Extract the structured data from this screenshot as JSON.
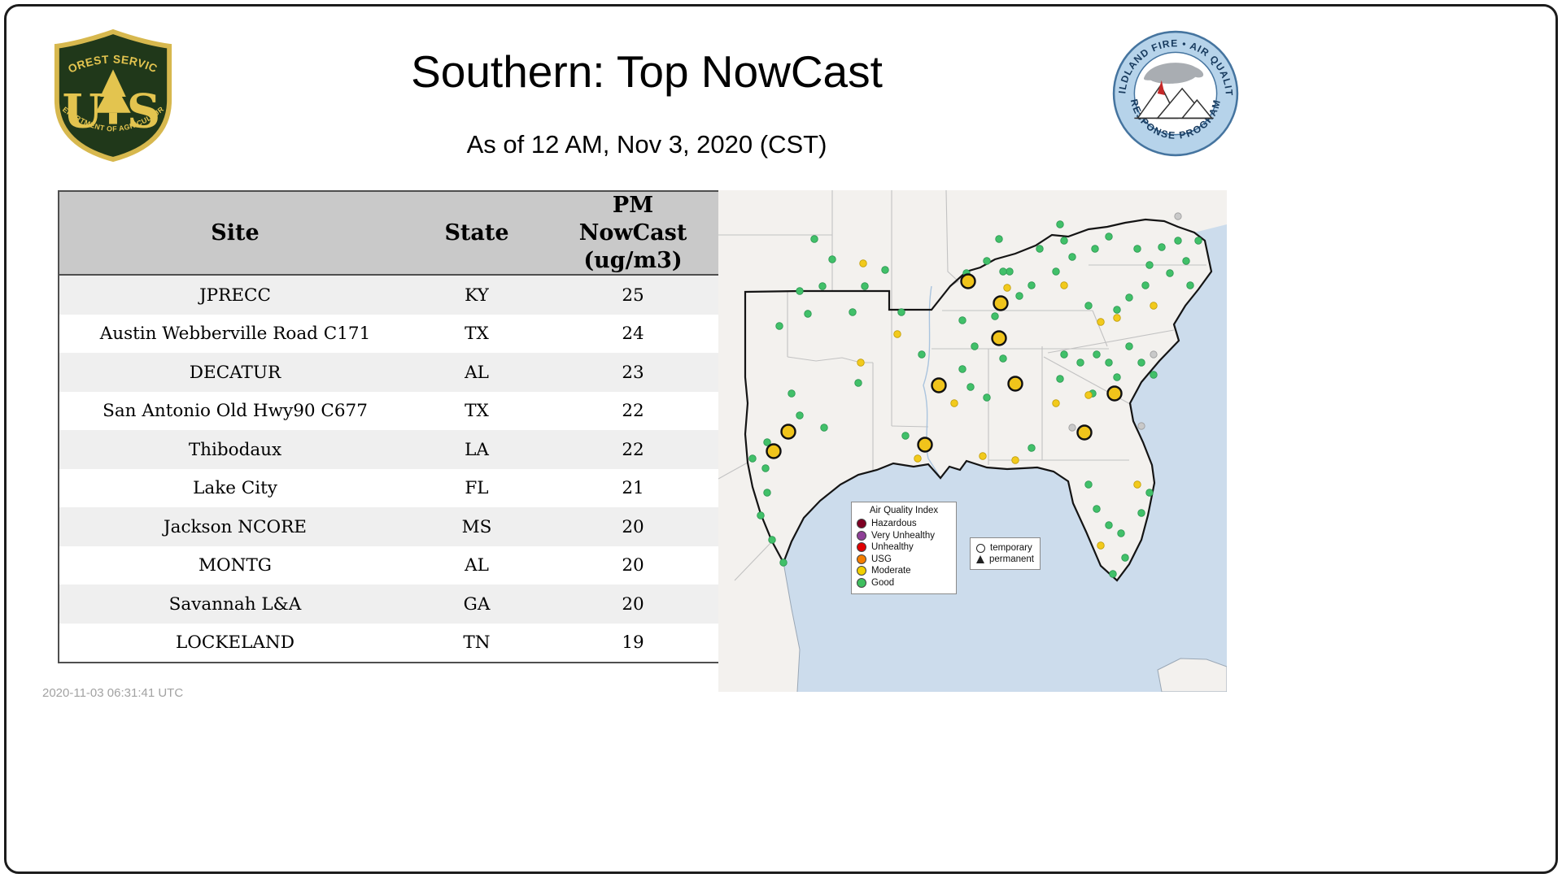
{
  "header": {
    "title": "Southern: Top NowCast",
    "subtitle": "As of 12 AM, Nov  3, 2020 (CST)"
  },
  "footer": {
    "timestamp": "2020-11-03 06:31:41 UTC"
  },
  "logos": {
    "forest_service": {
      "top": "FOREST SERVICE",
      "bottom": "DEPARTMENT OF AGRICULTURE",
      "letter_u": "U",
      "letter_s": "S"
    },
    "program": {
      "top": "WILDLAND FIRE • AIR QUALITY",
      "bottom": "RESPONSE PROGRAM"
    }
  },
  "table": {
    "site_header": "Site",
    "state_header": "State",
    "pm_header_lines": [
      "PM",
      "NowCast",
      "(ug/m3)"
    ],
    "rows": [
      [
        "JPRECC",
        "KY",
        "25"
      ],
      [
        "Austin Webberville Road C171",
        "TX",
        "24"
      ],
      [
        "DECATUR",
        "AL",
        "23"
      ],
      [
        "San Antonio Old Hwy90 C677",
        "TX",
        "22"
      ],
      [
        "Thibodaux",
        "LA",
        "22"
      ],
      [
        "Lake City",
        "FL",
        "21"
      ],
      [
        "Jackson NCORE",
        "MS",
        "20"
      ],
      [
        "MONTG",
        "AL",
        "20"
      ],
      [
        "Savannah L&A",
        "GA",
        "20"
      ],
      [
        "LOCKELAND",
        "TN",
        "19"
      ]
    ]
  },
  "map": {
    "legend": {
      "title": "Air Quality Index",
      "items": [
        {
          "label": "Hazardous",
          "color": "#7e0023"
        },
        {
          "label": "Very Unhealthy",
          "color": "#8f3f97"
        },
        {
          "label": "Unhealthy",
          "color": "#e00000"
        },
        {
          "label": "USG",
          "color": "#f57e00"
        },
        {
          "label": "Moderate",
          "color": "#f2d000"
        },
        {
          "label": "Good",
          "color": "#3fbf5f"
        }
      ]
    },
    "symbol_legend": [
      {
        "label": "temporary",
        "symbol": "circle"
      },
      {
        "label": "permanent",
        "symbol": "triangle"
      }
    ],
    "colors": {
      "good": "#41c069",
      "good_stroke": "#2a9650",
      "moderate": "#f2ca1c",
      "moderate_stroke": "#bf9c06",
      "gray_dot": "#c9c9c9",
      "gray_stroke": "#9a9a9a",
      "top_site": "#f0c41b",
      "top_site_stroke": "#111111"
    },
    "dots": {
      "green": [
        [
          100,
          124
        ],
        [
          75,
          167
        ],
        [
          110,
          152
        ],
        [
          128,
          118
        ],
        [
          165,
          150
        ],
        [
          90,
          250
        ],
        [
          100,
          277
        ],
        [
          130,
          292
        ],
        [
          172,
          237
        ],
        [
          60,
          372
        ],
        [
          52,
          400
        ],
        [
          66,
          430
        ],
        [
          80,
          458
        ],
        [
          58,
          342
        ],
        [
          225,
          150
        ],
        [
          250,
          202
        ],
        [
          230,
          302
        ],
        [
          310,
          242
        ],
        [
          315,
          192
        ],
        [
          350,
          207
        ],
        [
          305,
          102
        ],
        [
          330,
          87
        ],
        [
          358,
          100
        ],
        [
          385,
          117
        ],
        [
          415,
          100
        ],
        [
          395,
          72
        ],
        [
          425,
          62
        ],
        [
          435,
          82
        ],
        [
          463,
          72
        ],
        [
          480,
          57
        ],
        [
          420,
          42
        ],
        [
          515,
          72
        ],
        [
          530,
          92
        ],
        [
          545,
          70
        ],
        [
          555,
          102
        ],
        [
          575,
          87
        ],
        [
          565,
          62
        ],
        [
          580,
          117
        ],
        [
          590,
          62
        ],
        [
          525,
          117
        ],
        [
          505,
          132
        ],
        [
          490,
          147
        ],
        [
          455,
          142
        ],
        [
          425,
          202
        ],
        [
          445,
          212
        ],
        [
          465,
          202
        ],
        [
          420,
          232
        ],
        [
          480,
          212
        ],
        [
          505,
          192
        ],
        [
          520,
          212
        ],
        [
          535,
          227
        ],
        [
          455,
          362
        ],
        [
          465,
          392
        ],
        [
          480,
          412
        ],
        [
          495,
          422
        ],
        [
          500,
          452
        ],
        [
          485,
          472
        ],
        [
          520,
          397
        ],
        [
          530,
          372
        ],
        [
          345,
          60
        ],
        [
          370,
          130
        ],
        [
          340,
          155
        ],
        [
          300,
          160
        ],
        [
          385,
          317
        ],
        [
          350,
          100
        ],
        [
          180,
          118
        ],
        [
          140,
          85
        ],
        [
          460,
          250
        ],
        [
          490,
          230
        ],
        [
          60,
          310
        ],
        [
          42,
          330
        ],
        [
          205,
          98
        ],
        [
          118,
          60
        ],
        [
          330,
          255
        ],
        [
          300,
          220
        ]
      ],
      "yellow": [
        [
          220,
          177
        ],
        [
          175,
          212
        ],
        [
          290,
          262
        ],
        [
          415,
          262
        ],
        [
          425,
          117
        ],
        [
          490,
          157
        ],
        [
          325,
          327
        ],
        [
          365,
          332
        ],
        [
          470,
          437
        ],
        [
          455,
          252
        ],
        [
          535,
          142
        ],
        [
          470,
          162
        ],
        [
          245,
          330
        ],
        [
          178,
          90
        ],
        [
          515,
          362
        ],
        [
          355,
          120
        ]
      ],
      "gray": [
        [
          535,
          202
        ],
        [
          435,
          292
        ],
        [
          565,
          32
        ],
        [
          520,
          290
        ]
      ]
    },
    "top_sites": [
      [
        307,
        112
      ],
      [
        347,
        139
      ],
      [
        345,
        182
      ],
      [
        271,
        240
      ],
      [
        365,
        238
      ],
      [
        487,
        250
      ],
      [
        86,
        297
      ],
      [
        68,
        321
      ],
      [
        254,
        313
      ],
      [
        450,
        298
      ]
    ]
  }
}
